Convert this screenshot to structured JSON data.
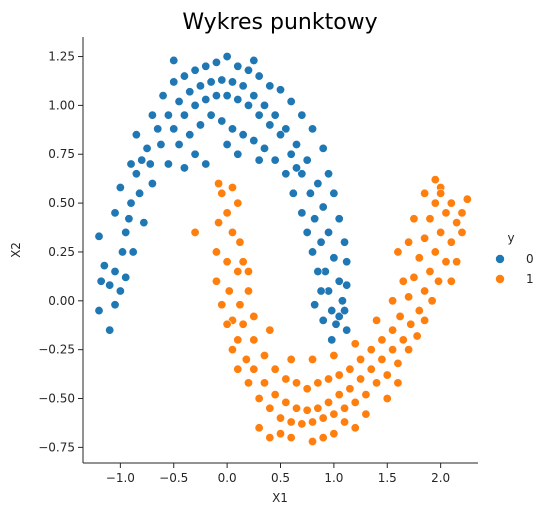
{
  "chart_data": {
    "type": "scatter",
    "title": "Wykres punktowy",
    "xlabel": "X1",
    "ylabel": "X2",
    "xlim": [
      -1.35,
      2.35
    ],
    "ylim": [
      -0.83,
      1.35
    ],
    "x_ticks": [
      "−1.0",
      "−0.5",
      "0.0",
      "0.5",
      "1.0",
      "1.5",
      "2.0"
    ],
    "y_ticks": [
      "−0.75",
      "−0.50",
      "−0.25",
      "0.00",
      "0.25",
      "0.50",
      "0.75",
      "1.00",
      "1.25"
    ],
    "x_tick_values": [
      -1.0,
      -0.5,
      0.0,
      0.5,
      1.0,
      1.5,
      2.0
    ],
    "y_tick_values": [
      -0.75,
      -0.5,
      -0.25,
      0.0,
      0.25,
      0.5,
      0.75,
      1.0,
      1.25
    ],
    "grid": false,
    "legend": {
      "title": "y",
      "placement": "right",
      "entries": [
        "0",
        "1"
      ]
    },
    "series": [
      {
        "name": "0",
        "color": "#1f77b4",
        "points": [
          [
            -1.0,
            0.05
          ],
          [
            -1.05,
            0.15
          ],
          [
            -0.95,
            0.35
          ],
          [
            -0.9,
            0.5
          ],
          [
            -0.85,
            0.65
          ],
          [
            -0.75,
            0.78
          ],
          [
            -0.65,
            0.88
          ],
          [
            -0.55,
            0.95
          ],
          [
            -0.45,
            1.02
          ],
          [
            -0.35,
            1.07
          ],
          [
            -0.25,
            1.1
          ],
          [
            -0.15,
            1.12
          ],
          [
            -0.05,
            1.13
          ],
          [
            0.05,
            1.12
          ],
          [
            0.15,
            1.1
          ],
          [
            0.25,
            1.05
          ],
          [
            0.35,
            1.0
          ],
          [
            0.45,
            0.95
          ],
          [
            0.55,
            0.88
          ],
          [
            0.65,
            0.8
          ],
          [
            0.75,
            0.72
          ],
          [
            0.85,
            0.6
          ],
          [
            0.9,
            0.48
          ],
          [
            0.95,
            0.35
          ],
          [
            1.0,
            0.22
          ],
          [
            1.05,
            0.1
          ],
          [
            1.08,
            0.0
          ],
          [
            0.98,
            -0.05
          ],
          [
            -1.1,
            0.08
          ],
          [
            -1.15,
            0.18
          ],
          [
            -1.2,
            0.33
          ],
          [
            -1.18,
            0.1
          ],
          [
            -1.2,
            -0.05
          ],
          [
            -1.1,
            -0.15
          ],
          [
            -1.05,
            -0.02
          ],
          [
            -0.98,
            0.25
          ],
          [
            -0.92,
            0.42
          ],
          [
            -0.82,
            0.55
          ],
          [
            -0.72,
            0.7
          ],
          [
            -0.62,
            0.8
          ],
          [
            -0.5,
            0.88
          ],
          [
            -0.4,
            0.95
          ],
          [
            -0.3,
            1.0
          ],
          [
            -0.2,
            1.03
          ],
          [
            -0.1,
            1.05
          ],
          [
            0.0,
            1.05
          ],
          [
            0.1,
            1.03
          ],
          [
            0.2,
            1.0
          ],
          [
            0.3,
            0.95
          ],
          [
            0.4,
            0.9
          ],
          [
            0.5,
            0.85
          ],
          [
            0.6,
            0.75
          ],
          [
            0.7,
            0.65
          ],
          [
            0.78,
            0.55
          ],
          [
            0.82,
            0.42
          ],
          [
            0.88,
            0.3
          ],
          [
            0.92,
            0.15
          ],
          [
            0.95,
            0.05
          ],
          [
            0.9,
            -0.1
          ],
          [
            1.05,
            -0.08
          ],
          [
            -0.85,
            0.85
          ],
          [
            -0.7,
            0.95
          ],
          [
            -0.6,
            1.05
          ],
          [
            -0.5,
            1.12
          ],
          [
            -0.4,
            1.15
          ],
          [
            -0.3,
            1.18
          ],
          [
            -0.2,
            1.2
          ],
          [
            -0.1,
            1.22
          ],
          [
            0.0,
            1.25
          ],
          [
            0.1,
            1.2
          ],
          [
            0.2,
            1.18
          ],
          [
            0.3,
            1.15
          ],
          [
            0.4,
            1.1
          ],
          [
            0.5,
            1.08
          ],
          [
            0.6,
            1.02
          ],
          [
            0.7,
            0.95
          ],
          [
            0.8,
            0.88
          ],
          [
            0.9,
            0.78
          ],
          [
            0.95,
            0.65
          ],
          [
            1.0,
            0.55
          ],
          [
            1.05,
            0.42
          ],
          [
            1.1,
            0.3
          ],
          [
            1.12,
            0.2
          ],
          [
            1.12,
            0.08
          ],
          [
            -1.05,
            0.45
          ],
          [
            -1.0,
            0.58
          ],
          [
            -0.9,
            0.7
          ],
          [
            -0.8,
            0.72
          ],
          [
            -0.7,
            0.6
          ],
          [
            -0.78,
            0.4
          ],
          [
            -0.88,
            0.25
          ],
          [
            -0.95,
            0.12
          ],
          [
            -0.55,
            0.7
          ],
          [
            -0.45,
            0.8
          ],
          [
            -0.35,
            0.85
          ],
          [
            -0.25,
            0.9
          ],
          [
            -0.15,
            0.95
          ],
          [
            -0.05,
            0.92
          ],
          [
            0.05,
            0.88
          ],
          [
            0.15,
            0.85
          ],
          [
            0.25,
            0.82
          ],
          [
            0.35,
            0.78
          ],
          [
            0.45,
            0.72
          ],
          [
            0.55,
            0.65
          ],
          [
            0.62,
            0.55
          ],
          [
            0.7,
            0.45
          ],
          [
            0.75,
            0.35
          ],
          [
            0.8,
            0.25
          ],
          [
            0.85,
            0.15
          ],
          [
            0.88,
            0.05
          ],
          [
            0.82,
            -0.02
          ],
          [
            1.1,
            -0.05
          ],
          [
            1.12,
            -0.15
          ],
          [
            0.98,
            -0.2
          ],
          [
            1.02,
            -0.12
          ],
          [
            -0.5,
            1.23
          ],
          [
            0.25,
            1.23
          ],
          [
            -0.4,
            0.68
          ],
          [
            -0.3,
            0.75
          ],
          [
            -0.2,
            0.7
          ],
          [
            0.0,
            0.8
          ],
          [
            0.1,
            0.75
          ],
          [
            0.3,
            0.72
          ],
          [
            0.65,
            0.68
          ]
        ]
      },
      {
        "name": "1",
        "color": "#ff7f0e",
        "points": [
          [
            0.0,
            0.45
          ],
          [
            0.05,
            0.35
          ],
          [
            0.0,
            0.2
          ],
          [
            0.02,
            0.05
          ],
          [
            0.05,
            -0.1
          ],
          [
            0.1,
            -0.2
          ],
          [
            0.18,
            -0.3
          ],
          [
            0.25,
            -0.35
          ],
          [
            0.35,
            -0.42
          ],
          [
            0.45,
            -0.48
          ],
          [
            0.55,
            -0.52
          ],
          [
            0.65,
            -0.55
          ],
          [
            0.75,
            -0.56
          ],
          [
            0.85,
            -0.55
          ],
          [
            0.95,
            -0.52
          ],
          [
            1.05,
            -0.48
          ],
          [
            1.15,
            -0.45
          ],
          [
            1.25,
            -0.4
          ],
          [
            1.35,
            -0.35
          ],
          [
            1.45,
            -0.3
          ],
          [
            1.55,
            -0.25
          ],
          [
            1.65,
            -0.2
          ],
          [
            1.72,
            -0.12
          ],
          [
            1.8,
            -0.05
          ],
          [
            1.85,
            0.05
          ],
          [
            1.9,
            0.15
          ],
          [
            1.95,
            0.25
          ],
          [
            2.0,
            0.35
          ],
          [
            2.05,
            0.45
          ],
          [
            2.1,
            0.5
          ],
          [
            -0.05,
            0.55
          ],
          [
            -0.08,
            0.4
          ],
          [
            -0.1,
            0.25
          ],
          [
            -0.1,
            0.1
          ],
          [
            -0.05,
            -0.02
          ],
          [
            0.0,
            -0.12
          ],
          [
            0.05,
            -0.25
          ],
          [
            0.1,
            -0.35
          ],
          [
            0.2,
            -0.42
          ],
          [
            0.3,
            -0.5
          ],
          [
            0.4,
            -0.55
          ],
          [
            0.5,
            -0.6
          ],
          [
            0.6,
            -0.62
          ],
          [
            0.7,
            -0.63
          ],
          [
            0.8,
            -0.62
          ],
          [
            0.9,
            -0.6
          ],
          [
            1.0,
            -0.58
          ],
          [
            1.1,
            -0.55
          ],
          [
            1.2,
            -0.52
          ],
          [
            1.3,
            -0.48
          ],
          [
            1.4,
            -0.42
          ],
          [
            1.5,
            -0.38
          ],
          [
            1.6,
            -0.32
          ],
          [
            1.7,
            -0.25
          ],
          [
            1.78,
            -0.18
          ],
          [
            1.85,
            -0.1
          ],
          [
            1.92,
            0.0
          ],
          [
            1.98,
            0.1
          ],
          [
            2.05,
            0.2
          ],
          [
            2.1,
            0.3
          ],
          [
            2.15,
            0.4
          ],
          [
            2.2,
            0.45
          ],
          [
            0.1,
            0.5
          ],
          [
            0.12,
            0.3
          ],
          [
            0.1,
            0.15
          ],
          [
            0.12,
            -0.02
          ],
          [
            0.15,
            -0.12
          ],
          [
            0.25,
            -0.2
          ],
          [
            0.35,
            -0.28
          ],
          [
            0.45,
            -0.35
          ],
          [
            0.55,
            -0.4
          ],
          [
            0.65,
            -0.42
          ],
          [
            0.75,
            -0.45
          ],
          [
            0.85,
            -0.42
          ],
          [
            0.95,
            -0.4
          ],
          [
            1.05,
            -0.38
          ],
          [
            1.15,
            -0.35
          ],
          [
            1.25,
            -0.3
          ],
          [
            1.35,
            -0.25
          ],
          [
            1.45,
            -0.2
          ],
          [
            1.55,
            -0.15
          ],
          [
            1.62,
            -0.08
          ],
          [
            1.7,
            0.02
          ],
          [
            1.75,
            0.12
          ],
          [
            1.8,
            0.22
          ],
          [
            1.85,
            0.32
          ],
          [
            1.9,
            0.42
          ],
          [
            1.95,
            0.5
          ],
          [
            2.0,
            0.58
          ],
          [
            1.85,
            0.55
          ],
          [
            1.75,
            0.42
          ],
          [
            1.7,
            0.3
          ],
          [
            2.15,
            0.2
          ],
          [
            2.2,
            0.35
          ],
          [
            0.3,
            -0.65
          ],
          [
            0.6,
            -0.7
          ],
          [
            0.8,
            -0.72
          ],
          [
            1.0,
            -0.68
          ],
          [
            1.2,
            -0.65
          ],
          [
            0.5,
            -0.68
          ],
          [
            0.9,
            -0.7
          ],
          [
            1.1,
            -0.62
          ],
          [
            -0.3,
            0.35
          ],
          [
            0.2,
            0.05
          ],
          [
            0.25,
            -0.08
          ],
          [
            0.4,
            -0.15
          ],
          [
            0.6,
            -0.3
          ],
          [
            0.8,
            -0.3
          ],
          [
            1.0,
            -0.28
          ],
          [
            1.2,
            -0.22
          ],
          [
            1.4,
            -0.1
          ],
          [
            1.55,
            0.0
          ],
          [
            1.65,
            0.1
          ],
          [
            1.6,
            0.25
          ],
          [
            1.95,
            0.62
          ],
          [
            2.0,
            0.55
          ],
          [
            2.25,
            0.52
          ],
          [
            0.4,
            -0.7
          ],
          [
            1.3,
            -0.58
          ],
          [
            1.5,
            -0.5
          ],
          [
            1.6,
            -0.42
          ],
          [
            0.15,
            0.2
          ],
          [
            0.2,
            0.15
          ],
          [
            -0.08,
            0.6
          ],
          [
            0.05,
            0.58
          ],
          [
            2.1,
            0.1
          ]
        ]
      }
    ]
  }
}
